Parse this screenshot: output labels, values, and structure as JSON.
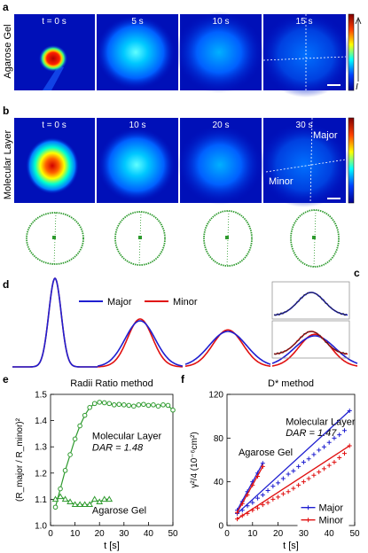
{
  "panel_labels": {
    "a": "a",
    "b": "b",
    "c": "c",
    "d": "d",
    "e": "e",
    "f": "f"
  },
  "row_a": {
    "side_label": "Agarose Gel",
    "times": [
      "t = 0 s",
      "5 s",
      "10 s",
      "15 s"
    ]
  },
  "row_b": {
    "side_label": "Molecular Layer",
    "times": [
      "t = 0 s",
      "10 s",
      "20 s",
      "30 s"
    ],
    "major_label": "Major",
    "minor_label": "Minor"
  },
  "colorbar_symbol": "I",
  "legend_d": {
    "major": "Major",
    "minor": "Minor",
    "major_color": "#1f1fd0",
    "minor_color": "#e01010"
  },
  "colors": {
    "green": "#2e9a2e",
    "blue": "#1f1fd0",
    "red": "#e01010"
  },
  "chart_data": [
    {
      "type": "line",
      "panel": "e",
      "title": "Radii Ratio method",
      "xlabel": "t [s]",
      "ylabel": "(R_major / R_minor)²",
      "xlim": [
        0,
        50
      ],
      "ylim": [
        1.0,
        1.5
      ],
      "xticks": [
        "0",
        "10",
        "20",
        "30",
        "40",
        "50"
      ],
      "yticks": [
        "1.0",
        "1.1",
        "1.2",
        "1.3",
        "1.4",
        "1.5"
      ],
      "annotations": [
        "Molecular Layer",
        "DAR = 1.48",
        "Agarose Gel"
      ],
      "series": [
        {
          "name": "Molecular Layer",
          "marker": "circle",
          "color": "#2e9a2e",
          "x": [
            2,
            4,
            6,
            8,
            10,
            12,
            14,
            16,
            18,
            20,
            22,
            24,
            26,
            28,
            30,
            32,
            34,
            36,
            38,
            40,
            42,
            44,
            46,
            48,
            50
          ],
          "y": [
            1.07,
            1.14,
            1.21,
            1.27,
            1.33,
            1.38,
            1.42,
            1.45,
            1.465,
            1.47,
            1.468,
            1.465,
            1.46,
            1.462,
            1.46,
            1.458,
            1.455,
            1.46,
            1.462,
            1.458,
            1.46,
            1.455,
            1.46,
            1.458,
            1.44
          ]
        },
        {
          "name": "Agarose Gel",
          "marker": "triangle",
          "color": "#2e9a2e",
          "x": [
            2,
            4,
            6,
            8,
            10,
            12,
            14,
            16,
            18,
            20,
            22,
            24
          ],
          "y": [
            1.1,
            1.11,
            1.1,
            1.09,
            1.08,
            1.08,
            1.08,
            1.08,
            1.1,
            1.09,
            1.1,
            1.1
          ]
        }
      ]
    },
    {
      "type": "line",
      "panel": "f",
      "title": "D* method",
      "xlabel": "t [s]",
      "ylabel": "γ²/4 (10⁻⁶cm²)",
      "xlim": [
        0,
        50
      ],
      "ylim": [
        0,
        120
      ],
      "xticks": [
        "0",
        "10",
        "20",
        "30",
        "40",
        "50"
      ],
      "yticks": [
        "0",
        "40",
        "80",
        "120"
      ],
      "annotations": [
        "Molecular Layer",
        "DAR = 1.47",
        "Agarose Gel"
      ],
      "legend": [
        "Major",
        "Minor"
      ],
      "series": [
        {
          "name": "Major",
          "color": "#1f1fd0",
          "x": [
            4,
            6,
            8,
            10,
            12,
            14,
            16,
            18,
            20,
            22,
            24,
            26,
            28,
            30,
            32,
            34,
            36,
            38,
            40,
            42,
            44,
            46,
            48
          ],
          "y": [
            11,
            14,
            18,
            21,
            25,
            28,
            32,
            36,
            39,
            43,
            47,
            50,
            54,
            58,
            61,
            65,
            69,
            72,
            76,
            80,
            83,
            87,
            105
          ]
        },
        {
          "name": "Minor",
          "color": "#e01010",
          "x": [
            4,
            6,
            8,
            10,
            12,
            14,
            16,
            18,
            20,
            22,
            24,
            26,
            28,
            30,
            32,
            34,
            36,
            38,
            40,
            42,
            44,
            46,
            48
          ],
          "y": [
            6,
            9,
            11,
            14,
            16,
            19,
            21,
            24,
            26,
            29,
            31,
            34,
            37,
            40,
            43,
            46,
            49,
            52,
            55,
            58,
            62,
            66,
            73
          ]
        },
        {
          "name": "Agarose Gel Major",
          "color": "#1f1fd0",
          "x": [
            4,
            6,
            8,
            10,
            12,
            14
          ],
          "y": [
            14,
            22,
            31,
            40,
            48,
            57
          ]
        },
        {
          "name": "Agarose Gel Minor",
          "color": "#e01010",
          "x": [
            4,
            6,
            8,
            10,
            12,
            14
          ],
          "y": [
            12,
            20,
            28,
            37,
            45,
            54
          ]
        }
      ]
    }
  ]
}
